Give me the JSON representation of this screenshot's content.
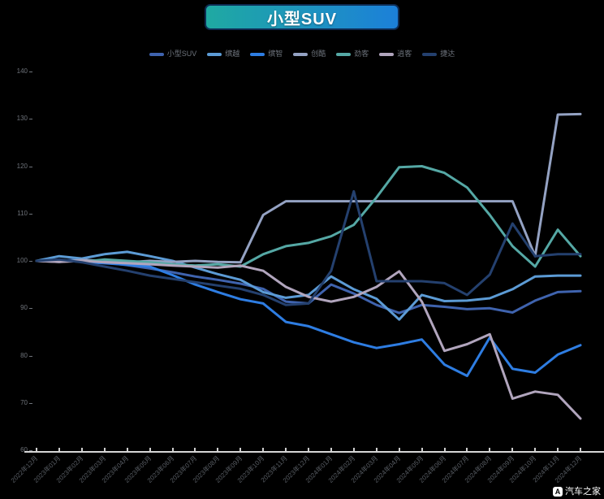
{
  "badge": {
    "title": "小型SUV",
    "gradient_left": "#1FA9A2",
    "gradient_right": "#1C80D9",
    "border_color": "#0E2B52"
  },
  "watermark": {
    "text": "汽车之家",
    "logo_letter": "A"
  },
  "chart_data": {
    "type": "line",
    "title": "小型SUV",
    "xlabel": "",
    "ylabel": "",
    "ylim": [
      60,
      140
    ],
    "y_ticks": [
      140,
      130,
      120,
      110,
      100,
      90,
      80,
      70,
      60
    ],
    "grid": false,
    "legend_position": "top",
    "background": "#000000",
    "x": [
      "2022年12月",
      "2023年01月",
      "2023年02月",
      "2023年03月",
      "2023年04月",
      "2023年05月",
      "2023年06月",
      "2023年07月",
      "2023年08月",
      "2023年09月",
      "2023年10月",
      "2023年11月",
      "2023年12月",
      "2024年01月",
      "2024年02月",
      "2024年03月",
      "2024年04月",
      "2024年05月",
      "2024年06月",
      "2024年07月",
      "2024年08月",
      "2024年09月",
      "2024年10月",
      "2024年11月",
      "2024年12月"
    ],
    "series": [
      {
        "name": "小型SUV",
        "color": "#3F63AE",
        "values": [
          100,
          100,
          100.3,
          99.7,
          99.1,
          98.4,
          97.6,
          96.7,
          96,
          95.2,
          94.1,
          91.4,
          91,
          95,
          93.1,
          90.7,
          89,
          90.7,
          90.3,
          89.8,
          90,
          89.1,
          91.6,
          93.4,
          93.6
        ]
      },
      {
        "name": "缤越",
        "color": "#5C9BD5",
        "values": [
          100,
          101,
          100.5,
          101.4,
          101.9,
          101,
          100,
          98.6,
          97.2,
          96,
          93.4,
          92.2,
          92.8,
          96.7,
          94,
          92,
          87.6,
          92.8,
          91.5,
          91.6,
          92.1,
          94,
          96.7,
          96.9,
          96.9
        ]
      },
      {
        "name": "缤智",
        "color": "#2E7DE2",
        "values": [
          100,
          100.2,
          99.8,
          99.5,
          99.2,
          98.8,
          97,
          95,
          93.4,
          91.9,
          91,
          87.1,
          86.2,
          84.5,
          82.8,
          81.6,
          82.4,
          83.4,
          78.1,
          75.7,
          83.8,
          77.2,
          76.4,
          80.2,
          82.2
        ]
      },
      {
        "name": "创酷",
        "color": "#94A2C3",
        "values": [
          100,
          99.8,
          100.2,
          100,
          99.7,
          100,
          99.8,
          100,
          99.8,
          99.7,
          109.7,
          112.6,
          112.6,
          112.6,
          112.6,
          112.6,
          112.6,
          112.6,
          112.6,
          112.6,
          112.6,
          112.6,
          101,
          130.9,
          131
        ]
      },
      {
        "name": "劲客",
        "color": "#55A8A5",
        "values": [
          100,
          100.2,
          99.8,
          100.3,
          100,
          99.7,
          99.3,
          99,
          99.3,
          98.8,
          101.4,
          103.1,
          103.8,
          105.2,
          107.6,
          113.4,
          119.8,
          120,
          118.6,
          115.5,
          109.7,
          103.1,
          98.8,
          106.6,
          101
        ]
      },
      {
        "name": "逍客",
        "color": "#B1A5BD",
        "values": [
          100,
          99.8,
          100,
          99.7,
          99.5,
          99.3,
          99,
          98.8,
          98.6,
          99,
          97.9,
          94.5,
          92.4,
          91.4,
          92.4,
          94.5,
          97.8,
          91.4,
          81,
          82.4,
          84.5,
          70.9,
          72.4,
          71.7,
          66.7
        ]
      },
      {
        "name": "捷达",
        "color": "#24406E",
        "values": [
          100,
          100.3,
          99.7,
          98.8,
          97.9,
          96.9,
          96.2,
          95.5,
          94.8,
          94.1,
          92.8,
          90.7,
          91,
          97.9,
          114.7,
          95.7,
          95.7,
          95.7,
          95.3,
          92.8,
          97.1,
          107.9,
          101,
          101.4,
          101.4
        ]
      }
    ]
  }
}
